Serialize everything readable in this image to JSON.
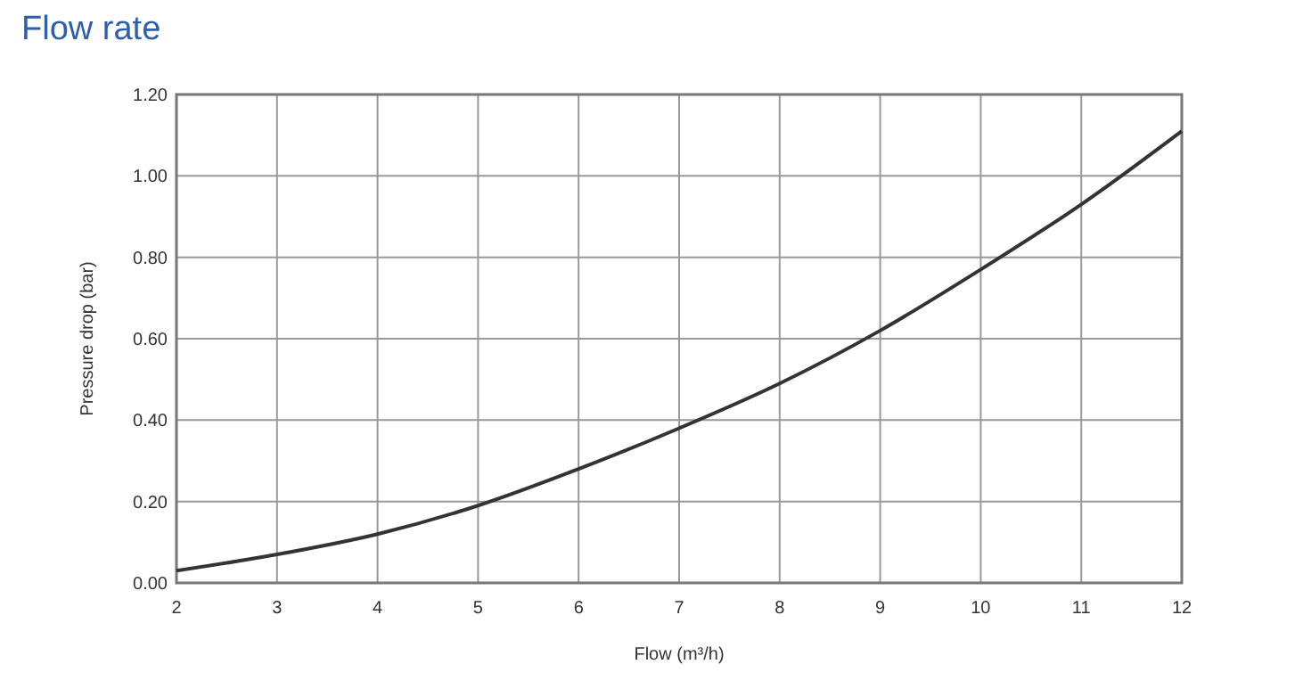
{
  "chart_data": {
    "type": "line",
    "title": "Flow rate",
    "xlabel": "Flow (m³/h)",
    "ylabel": "Pressure drop (bar)",
    "x": [
      2,
      3,
      4,
      5,
      6,
      7,
      8,
      9,
      10,
      11,
      12
    ],
    "series": [
      {
        "color": "#333333",
        "values": [
          0.03,
          0.07,
          0.12,
          0.19,
          0.28,
          0.38,
          0.49,
          0.62,
          0.77,
          0.93,
          1.11
        ]
      }
    ],
    "xlim": [
      2,
      12
    ],
    "xticks": [
      2,
      3,
      4,
      5,
      6,
      7,
      8,
      9,
      10,
      11,
      12
    ],
    "ylim": [
      0,
      1.2
    ],
    "yticks": [
      {
        "value": 0,
        "label": "0.00"
      },
      {
        "value": 0.2,
        "label": "0.20"
      },
      {
        "value": 0.4,
        "label": "0.40"
      },
      {
        "value": 0.6,
        "label": "0.60"
      },
      {
        "value": 0.8,
        "label": "0.80"
      },
      {
        "value": 1,
        "label": "1.00"
      },
      {
        "value": 1.2,
        "label": "1.20"
      }
    ],
    "grid": true,
    "marker": "none",
    "line_style": "solid"
  }
}
